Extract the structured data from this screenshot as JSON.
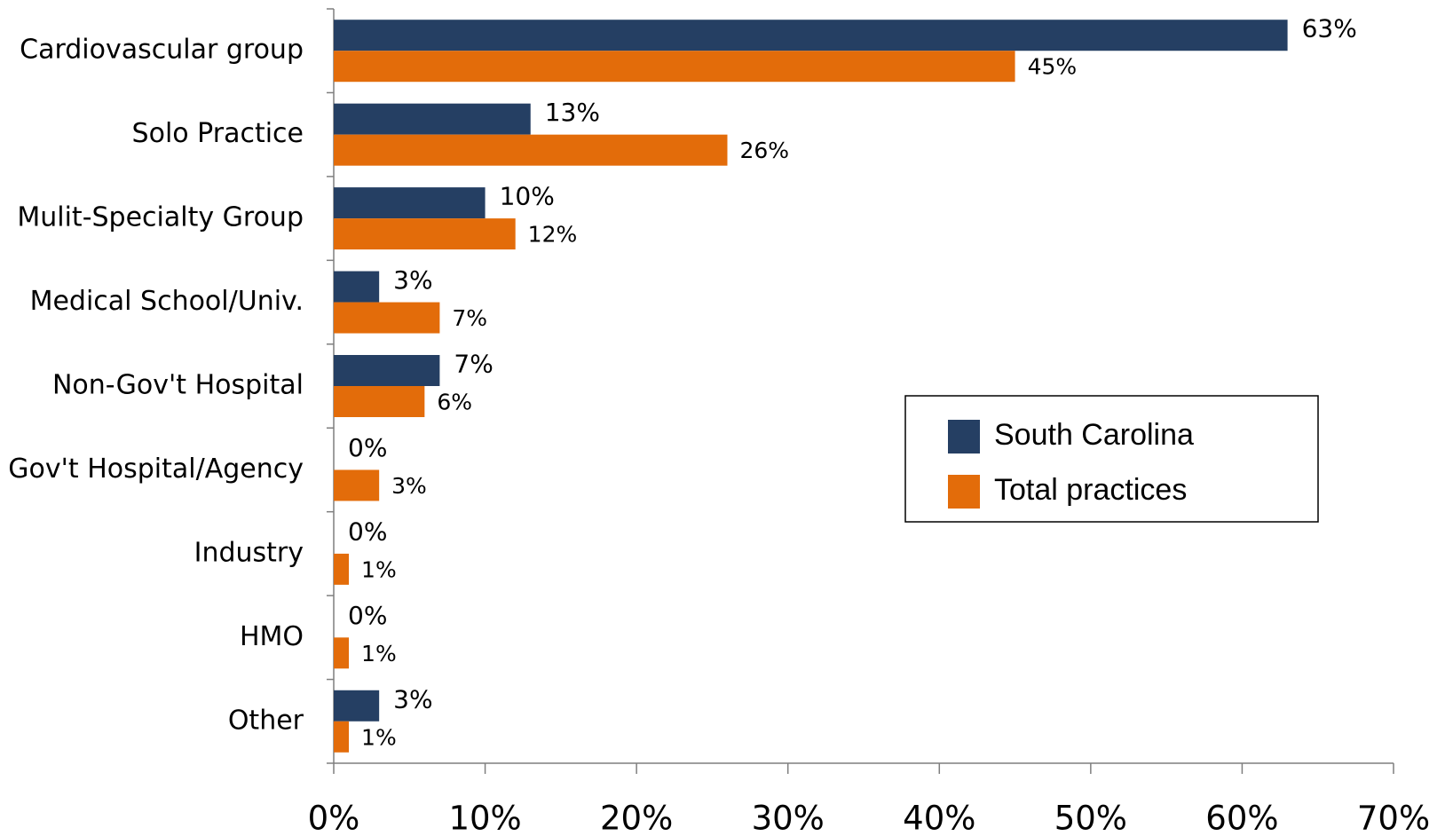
{
  "chart_data": {
    "type": "bar",
    "orientation": "horizontal",
    "categories": [
      "Cardiovascular group",
      "Solo Practice",
      "Mulit-Specialty Group",
      "Medical School/Univ.",
      "Non-Gov't Hospital",
      "Gov't Hospital/Agency",
      "Industry",
      "HMO",
      "Other"
    ],
    "series": [
      {
        "name": "South Carolina",
        "color": "#253f63",
        "values": [
          63,
          13,
          10,
          3,
          7,
          0,
          0,
          0,
          3
        ],
        "value_labels": [
          "63%",
          "13%",
          "10%",
          "3%",
          "7%",
          "0%",
          "0%",
          "0%",
          "3%"
        ]
      },
      {
        "name": "Total practices",
        "color": "#e36c0a",
        "values": [
          45,
          26,
          12,
          7,
          6,
          3,
          1,
          1,
          1
        ],
        "value_labels": [
          "45%",
          "26%",
          "12%",
          "7%",
          "6%",
          "3%",
          "1%",
          "1%",
          "1%"
        ]
      }
    ],
    "xlim": [
      0,
      70
    ],
    "xticks": [
      {
        "value": 0,
        "label": "0%"
      },
      {
        "value": 10,
        "label": "10%"
      },
      {
        "value": 20,
        "label": "20%"
      },
      {
        "value": 30,
        "label": "30%"
      },
      {
        "value": 40,
        "label": "40%"
      },
      {
        "value": 50,
        "label": "50%"
      },
      {
        "value": 60,
        "label": "60%"
      },
      {
        "value": 70,
        "label": "70%"
      }
    ],
    "legend": "right"
  }
}
